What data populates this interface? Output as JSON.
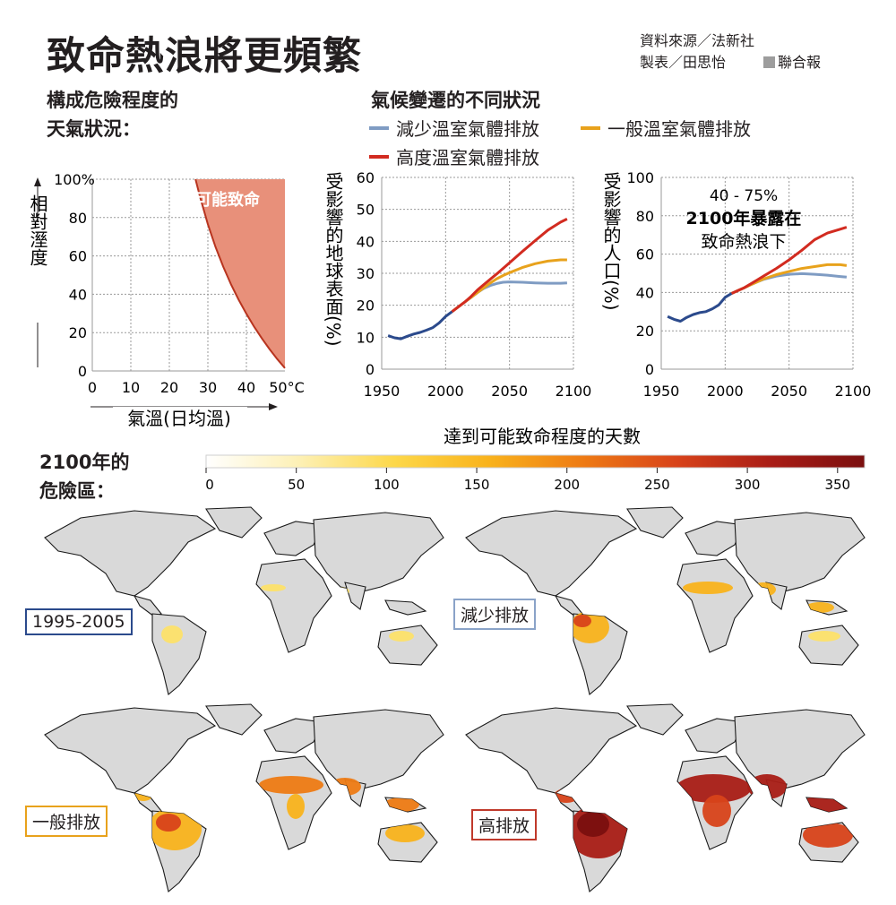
{
  "title": "致命熱浪將更頻繁",
  "credits": {
    "source": "資料來源／法新社",
    "maker": "製表／田思怡",
    "brand": "聯合報"
  },
  "colors": {
    "low": "#7f9cc3",
    "medium": "#e8a21c",
    "high": "#d22b20",
    "historical": "#2b4a8c",
    "danger_fill": "#e8907a",
    "danger_edge": "#b8341f",
    "land": "#d9d9d9"
  },
  "section1": {
    "title_line1": "構成危險程度的",
    "title_line2": "天氣狀況："
  },
  "section2": {
    "title": "氣候變遷的不同狀況",
    "legend": {
      "low": "減少溫室氣體排放",
      "medium": "一般溫室氣體排放",
      "high": "高度溫室氣體排放"
    }
  },
  "section3": {
    "title_line1": "2100年的",
    "title_line2": "危險區："
  },
  "maps": {
    "labels": [
      "1995-2005",
      "減少排放",
      "一般排放",
      "高排放"
    ]
  },
  "chart_data": [
    {
      "type": "area",
      "title": "構成危險程度的天氣狀況",
      "xlabel": "氣溫(日均溫)",
      "ylabel": "相對溼度",
      "xlim": [
        0,
        50
      ],
      "ylim": [
        0,
        100
      ],
      "x_ticks": [
        "0",
        "10",
        "20",
        "30",
        "40",
        "50°C"
      ],
      "y_ticks": [
        "0",
        "20",
        "40",
        "60",
        "80",
        "100%"
      ],
      "boundary": {
        "x": [
          26.8,
          28,
          30,
          32,
          34,
          36,
          38,
          40,
          42,
          44,
          46,
          48,
          50
        ],
        "y": [
          100,
          90.5,
          76.5,
          64.6,
          54.3,
          45.2,
          37.1,
          29.8,
          23.1,
          17.0,
          11.4,
          6.2,
          1.5
        ]
      },
      "region_label": "可能致命"
    },
    {
      "type": "line",
      "ylabel": "受影響的地球表面(%)",
      "xlim": [
        1950,
        2100
      ],
      "ylim": [
        0,
        60
      ],
      "x_ticks": [
        "1950",
        "2000",
        "2050",
        "2100"
      ],
      "y_ticks": [
        "0",
        "10",
        "20",
        "30",
        "40",
        "50",
        "60"
      ],
      "historical": {
        "x": [
          1955,
          1960,
          1965,
          1970,
          1975,
          1980,
          1985,
          1990,
          1995,
          2000,
          2005
        ],
        "y": [
          10.5,
          9.8,
          9.5,
          10.3,
          11,
          11.5,
          12.2,
          13,
          14.5,
          16.5,
          18
        ]
      },
      "series": [
        {
          "name": "減少溫室氣體排放",
          "x": [
            2005,
            2010,
            2015,
            2020,
            2025,
            2030,
            2035,
            2040,
            2045,
            2050,
            2060,
            2070,
            2080,
            2090,
            2095
          ],
          "y": [
            18,
            19.5,
            21,
            22.5,
            24,
            25.3,
            26.2,
            26.8,
            27.2,
            27.3,
            27.2,
            27,
            26.9,
            26.9,
            27
          ]
        },
        {
          "name": "一般溫室氣體排放",
          "x": [
            2005,
            2010,
            2015,
            2020,
            2025,
            2030,
            2035,
            2040,
            2045,
            2050,
            2060,
            2070,
            2080,
            2090,
            2095
          ],
          "y": [
            18,
            19.5,
            21,
            22.5,
            24,
            25.5,
            27,
            28.3,
            29.3,
            30.2,
            31.8,
            33,
            33.8,
            34.2,
            34.2
          ]
        },
        {
          "name": "高度溫室氣體排放",
          "x": [
            2005,
            2010,
            2015,
            2020,
            2025,
            2030,
            2040,
            2050,
            2060,
            2070,
            2080,
            2090,
            2095
          ],
          "y": [
            18,
            19.5,
            21,
            22.8,
            24.8,
            26.5,
            29.8,
            33.3,
            36.8,
            40.2,
            43.5,
            46,
            47
          ]
        }
      ]
    },
    {
      "type": "line",
      "ylabel": "受影響的人口(%)",
      "xlim": [
        1950,
        2100
      ],
      "ylim": [
        0,
        100
      ],
      "x_ticks": [
        "1950",
        "2000",
        "2050",
        "2100"
      ],
      "y_ticks": [
        "0",
        "20",
        "40",
        "60",
        "80",
        "100"
      ],
      "annotation_line1": "40 - 75%",
      "annotation_line2": "2100年暴露在",
      "annotation_line3": "致命熱浪下",
      "historical": {
        "x": [
          1955,
          1960,
          1965,
          1970,
          1975,
          1980,
          1985,
          1990,
          1995,
          2000,
          2005
        ],
        "y": [
          27.5,
          26,
          25,
          27,
          28.5,
          29.5,
          30,
          31.5,
          33.5,
          37.5,
          39.5
        ]
      },
      "series": [
        {
          "name": "減少溫室氣體排放",
          "x": [
            2005,
            2010,
            2015,
            2020,
            2025,
            2030,
            2040,
            2050,
            2060,
            2070,
            2080,
            2090,
            2095
          ],
          "y": [
            39.5,
            41,
            42.5,
            44,
            45.5,
            46.8,
            48.5,
            49.5,
            49.8,
            49.5,
            49,
            48.3,
            48
          ]
        },
        {
          "name": "一般溫室氣體排放",
          "x": [
            2005,
            2010,
            2015,
            2020,
            2025,
            2030,
            2040,
            2050,
            2060,
            2070,
            2080,
            2090,
            2095
          ],
          "y": [
            39.5,
            41,
            42.5,
            44,
            45.5,
            47,
            49.3,
            51,
            52.5,
            53.5,
            54.5,
            54.5,
            54
          ]
        },
        {
          "name": "高度溫室氣體排放",
          "x": [
            2005,
            2010,
            2015,
            2020,
            2025,
            2030,
            2040,
            2050,
            2060,
            2070,
            2080,
            2090,
            2095
          ],
          "y": [
            39.5,
            41,
            42.5,
            44.5,
            46.5,
            48.5,
            52.5,
            57,
            62,
            67.5,
            71,
            73,
            74
          ]
        }
      ]
    },
    {
      "type": "heatmap",
      "title": "達到可能致命程度的天數",
      "scale_min": 0,
      "scale_max": 365,
      "ticks": [
        "0",
        "50",
        "100",
        "150",
        "200",
        "250",
        "300",
        "350"
      ],
      "tick_values": [
        0,
        50,
        100,
        150,
        200,
        250,
        300,
        350
      ],
      "colors": [
        "#ffffff",
        "#fdf0b4",
        "#fdd84a",
        "#f9b31c",
        "#ee7b14",
        "#d8431a",
        "#a91d16",
        "#7a0f0f"
      ]
    }
  ]
}
